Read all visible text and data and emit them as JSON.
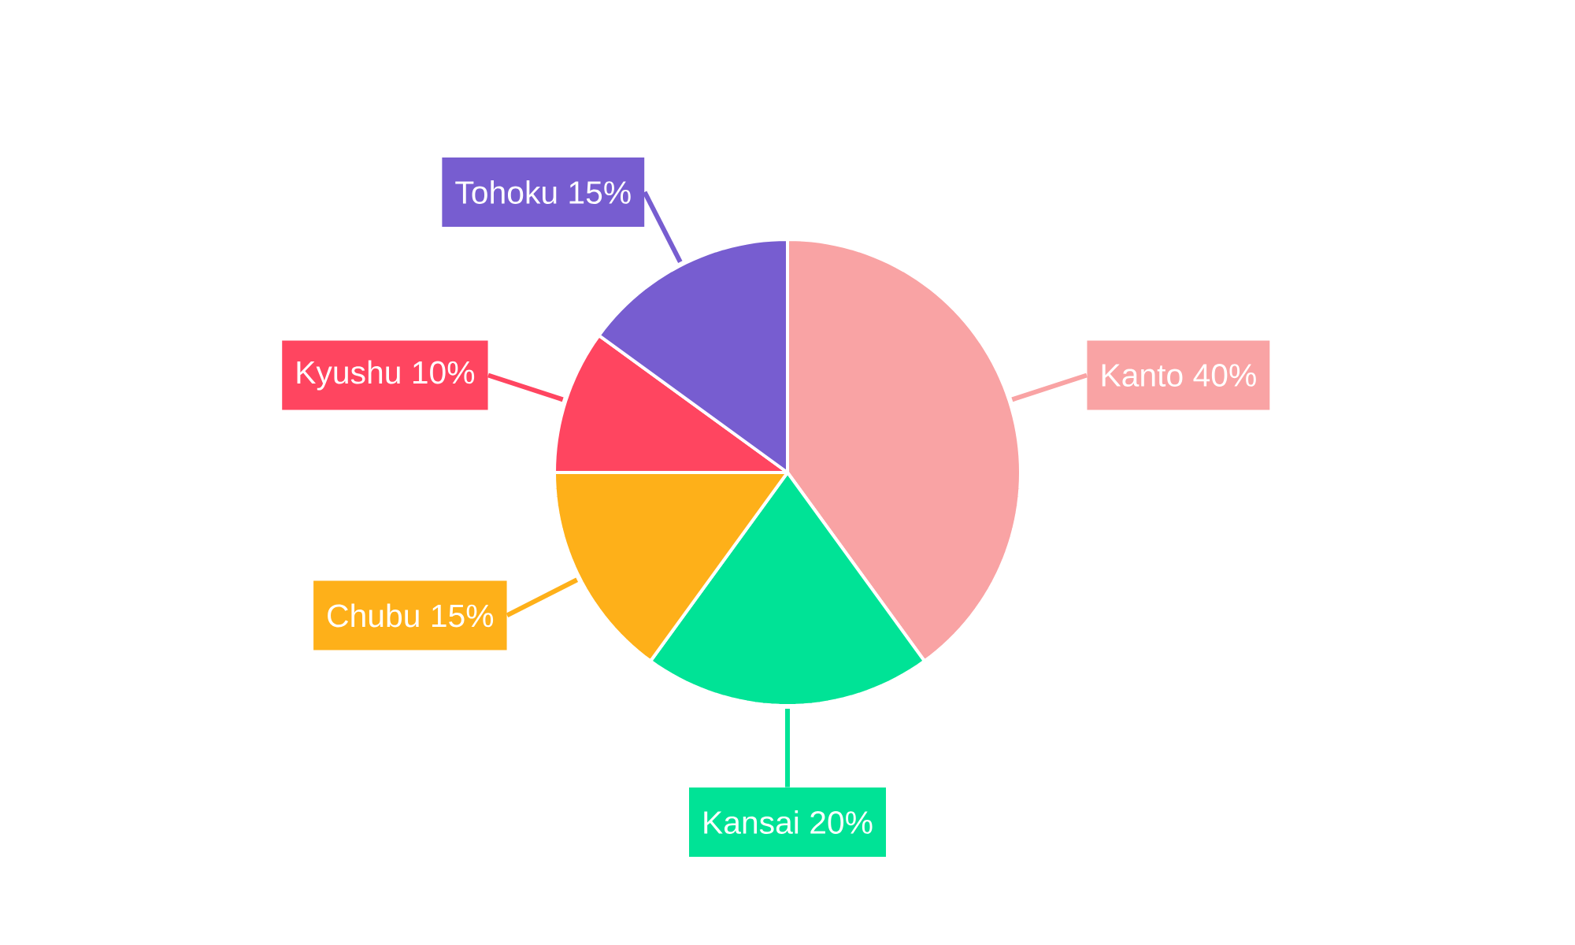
{
  "chart_data": {
    "type": "pie",
    "categories": [
      "Kanto",
      "Kansai",
      "Chubu",
      "Kyushu",
      "Tohoku"
    ],
    "values": [
      40,
      20,
      15,
      10,
      15
    ],
    "value_labels": [
      "40%",
      "20%",
      "15%",
      "10%",
      "15%"
    ],
    "colors": [
      "#f9a3a4",
      "#00e396",
      "#feb019",
      "#ff4560",
      "#775dd0"
    ]
  }
}
